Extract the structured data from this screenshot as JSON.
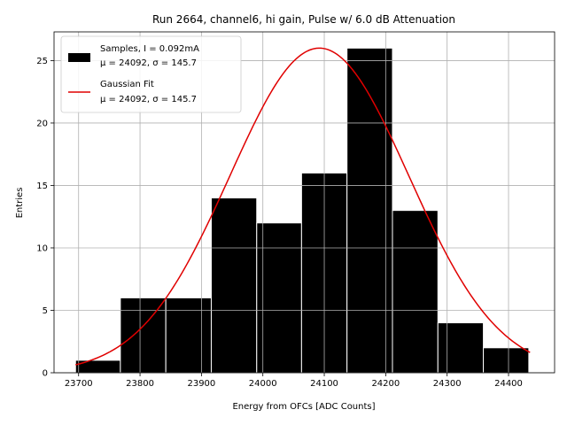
{
  "chart_data": {
    "type": "bar",
    "title": "Run 2664, channel6, hi gain, Pulse w/ 6.0 dB Attenuation",
    "xlabel": "Energy from OFCs [ADC Counts]",
    "ylabel": "Entries",
    "xlim": [
      23660,
      24475
    ],
    "ylim": [
      0,
      27.3
    ],
    "xticks": [
      23700,
      23800,
      23900,
      24000,
      24100,
      24200,
      24300,
      24400
    ],
    "yticks": [
      0,
      5,
      10,
      15,
      20,
      25
    ],
    "grid": true,
    "legend_position": "top-left",
    "histogram": {
      "name": "Samples, I = 0.092mA",
      "stats": "μ = 24092, σ = 145.7",
      "color": "#000000",
      "bin_edges": [
        23695,
        23768,
        23842,
        23916,
        23990,
        24063,
        24137,
        24211,
        24285,
        24359,
        24433
      ],
      "counts": [
        1,
        6,
        6,
        14,
        12,
        16,
        26,
        13,
        4,
        2
      ]
    },
    "fit": {
      "name": "Gaussian Fit",
      "stats": "μ = 24092, σ = 145.7",
      "color": "#e00000",
      "mu": 24092,
      "sigma": 145.7,
      "amplitude": 26,
      "x_range": [
        23695,
        24435
      ]
    }
  }
}
